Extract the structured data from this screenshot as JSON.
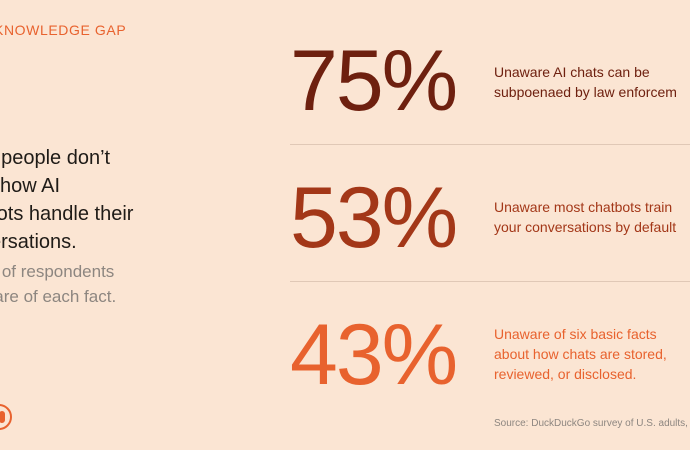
{
  "eyebrow": "KNOWLEDGE GAP",
  "headline": {
    "lines": [
      "st people don’t",
      "w how AI",
      "tbots handle their",
      "versations."
    ]
  },
  "subhead": {
    "lines": [
      "re of respondents",
      "ware of each fact."
    ]
  },
  "stats": [
    {
      "value": "75%",
      "lines": [
        "Unaware AI chats can be",
        "subpoenaed by law enforcem"
      ]
    },
    {
      "value": "53%",
      "lines": [
        "Unaware most chatbots train",
        "your conversations by default"
      ]
    },
    {
      "value": "43%",
      "lines": [
        "Unaware of six basic facts",
        "about how chats are stored,",
        "reviewed, or disclosed."
      ]
    }
  ],
  "source": "Source: DuckDuckGo survey of U.S. adults, J",
  "colors": {
    "background": "#fbe5d3",
    "stat_1": "#6e200f",
    "stat_2": "#a33718",
    "stat_3": "#e8622e"
  }
}
